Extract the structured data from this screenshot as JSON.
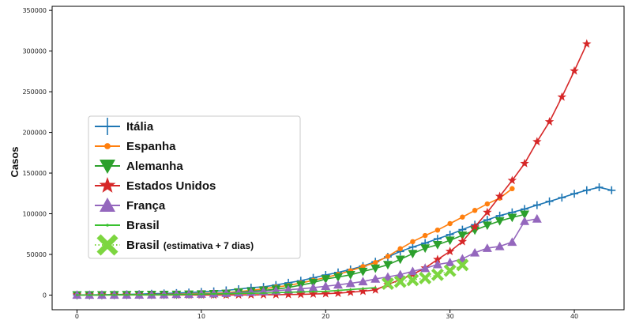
{
  "chart_data": {
    "type": "line",
    "title": "",
    "xlabel": "",
    "ylabel": "Casos",
    "xlim": [
      -2,
      44
    ],
    "ylim": [
      -18000,
      355000
    ],
    "xticks": [
      0,
      10,
      20,
      30,
      40
    ],
    "yticks": [
      0,
      50000,
      100000,
      150000,
      200000,
      250000,
      300000,
      350000
    ],
    "xtick_labels": [
      "0",
      "10",
      "20",
      "30",
      "40"
    ],
    "ytick_labels": [
      "0",
      "50000",
      "100000",
      "150000",
      "200000",
      "250000",
      "300000",
      "350000"
    ],
    "grid": false,
    "legend_position": "center-left",
    "series": [
      {
        "name": "Itália",
        "color": "#1f77b4",
        "marker": "plus",
        "x": [
          0,
          1,
          2,
          3,
          4,
          5,
          6,
          7,
          8,
          9,
          10,
          11,
          12,
          13,
          14,
          15,
          16,
          17,
          18,
          19,
          20,
          21,
          22,
          23,
          24,
          25,
          26,
          27,
          28,
          29,
          30,
          31,
          32,
          33,
          34,
          35,
          36,
          37,
          38,
          39,
          40,
          41,
          42,
          43
        ],
        "y": [
          200,
          300,
          400,
          600,
          900,
          1100,
          1700,
          2000,
          2500,
          3100,
          3900,
          4600,
          5800,
          7300,
          9200,
          10100,
          12400,
          15100,
          17700,
          21200,
          24700,
          27900,
          31500,
          35700,
          41000,
          47000,
          53600,
          59100,
          63900,
          69200,
          74400,
          80500,
          86500,
          92500,
          97700,
          101700,
          105800,
          110600,
          115200,
          119800,
          124600,
          128900,
          132500,
          128900
        ]
      },
      {
        "name": "Espanha",
        "color": "#ff7f0e",
        "marker": "circle",
        "x": [
          0,
          1,
          2,
          3,
          4,
          5,
          6,
          7,
          8,
          9,
          10,
          11,
          12,
          13,
          14,
          15,
          16,
          17,
          18,
          19,
          20,
          21,
          22,
          23,
          24,
          25,
          26,
          27,
          28,
          29,
          30,
          31,
          32,
          33,
          34,
          35
        ],
        "y": [
          100,
          150,
          200,
          300,
          400,
          500,
          700,
          1000,
          1200,
          1600,
          2100,
          2300,
          3000,
          4300,
          5800,
          7700,
          9900,
          11800,
          14800,
          18100,
          21600,
          25500,
          29900,
          35100,
          40000,
          47600,
          57000,
          65700,
          73200,
          79900,
          87900,
          95900,
          104100,
          112100,
          119200,
          130800
        ]
      },
      {
        "name": "Alemanha",
        "color": "#2ca02c",
        "marker": "triangle-down",
        "x": [
          0,
          1,
          2,
          3,
          4,
          5,
          6,
          7,
          8,
          9,
          10,
          11,
          12,
          13,
          14,
          15,
          16,
          17,
          18,
          19,
          20,
          21,
          22,
          23,
          24,
          25,
          26,
          27,
          28,
          29,
          30,
          31,
          32,
          33,
          34,
          35,
          36
        ],
        "y": [
          100,
          150,
          200,
          300,
          400,
          500,
          600,
          700,
          800,
          1000,
          1200,
          1600,
          2000,
          3700,
          4600,
          5800,
          7200,
          9300,
          12300,
          15300,
          19800,
          22200,
          24900,
          29000,
          32900,
          37300,
          43900,
          50900,
          57700,
          61900,
          67300,
          73500,
          79700,
          85800,
          91100,
          95400,
          99200
        ]
      },
      {
        "name": "Estados Unidos",
        "color": "#d62728",
        "marker": "star",
        "x": [
          0,
          1,
          2,
          3,
          4,
          5,
          6,
          7,
          8,
          9,
          10,
          11,
          12,
          13,
          14,
          15,
          16,
          17,
          18,
          19,
          20,
          21,
          22,
          23,
          24,
          25,
          26,
          27,
          28,
          29,
          30,
          31,
          32,
          33,
          34,
          35,
          36,
          37,
          38,
          39,
          40,
          41
        ],
        "y": [
          100,
          100,
          100,
          100,
          100,
          100,
          100,
          100,
          100,
          100,
          100,
          100,
          100,
          200,
          300,
          400,
          500,
          700,
          900,
          1300,
          1700,
          2300,
          3500,
          4700,
          6400,
          12800,
          19100,
          25500,
          33300,
          43800,
          53700,
          65800,
          83800,
          101700,
          121400,
          140900,
          161800,
          188600,
          213100,
          243500,
          275600,
          308800
        ]
      },
      {
        "name": "França",
        "color": "#9467bd",
        "marker": "triangle-up",
        "x": [
          0,
          1,
          2,
          3,
          4,
          5,
          6,
          7,
          8,
          9,
          10,
          11,
          12,
          13,
          14,
          15,
          16,
          17,
          18,
          19,
          20,
          21,
          22,
          23,
          24,
          25,
          26,
          27,
          28,
          29,
          30,
          31,
          32,
          33,
          34,
          35,
          36,
          37
        ],
        "y": [
          100,
          130,
          190,
          200,
          240,
          280,
          380,
          650,
          950,
          1100,
          1400,
          1800,
          2300,
          2900,
          3700,
          4500,
          5400,
          6600,
          7700,
          9100,
          10900,
          12600,
          14500,
          16700,
          19900,
          22300,
          25200,
          29200,
          32900,
          37600,
          40200,
          44600,
          52100,
          57700,
          59900,
          65200,
          90800,
          93800
        ]
      },
      {
        "name": "Brasil",
        "color": "#39c12f",
        "marker": "point",
        "x": [
          0,
          1,
          2,
          3,
          4,
          5,
          6,
          7,
          8,
          9,
          10,
          11,
          12,
          13,
          14,
          15,
          16,
          17,
          18,
          19,
          20,
          21,
          22,
          23,
          24
        ],
        "y": [
          100,
          120,
          150,
          200,
          230,
          290,
          350,
          430,
          620,
          900,
          1100,
          1500,
          1600,
          2000,
          2200,
          2400,
          2900,
          3400,
          3900,
          4300,
          4600,
          5700,
          6800,
          7900,
          9100
        ]
      },
      {
        "name": "Brasil",
        "name_note": "(estimativa + 7 dias)",
        "color": "#7dd640",
        "marker": "x",
        "x": [
          25,
          26,
          27,
          28,
          29,
          30,
          31
        ],
        "y": [
          14000,
          16500,
          18500,
          21000,
          25000,
          30000,
          37000
        ]
      }
    ]
  }
}
